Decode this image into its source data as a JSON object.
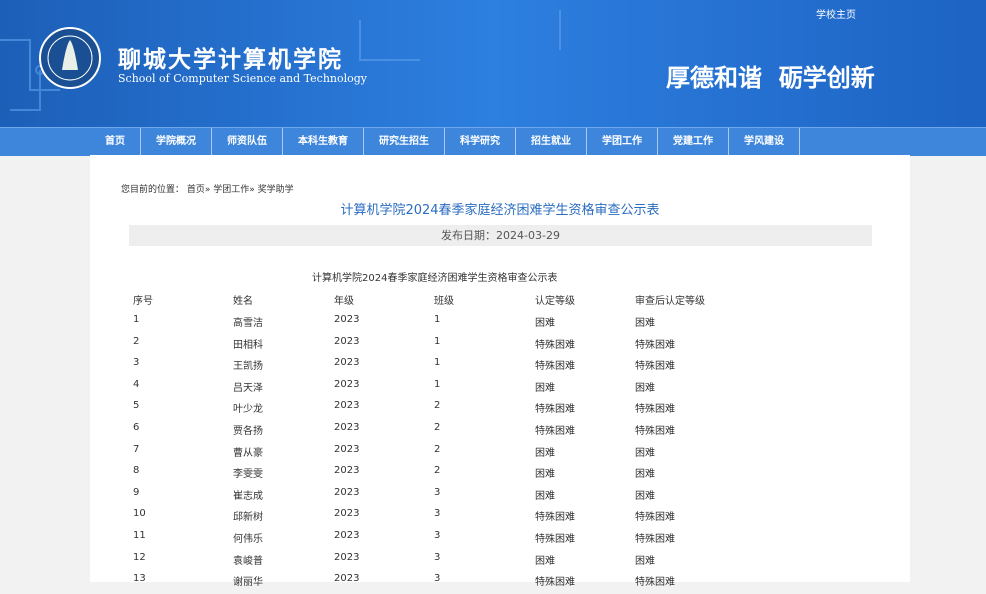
{
  "header": {
    "top_link": "学校主页",
    "school_name": "聊城大学计算机学院",
    "school_name_en": "School of Computer Science and Technology",
    "slogan": "厚德和谐  砺学创新"
  },
  "nav": [
    "首页",
    "学院概况",
    "师资队伍",
    "本科生教育",
    "研究生招生",
    "科学研究",
    "招生就业",
    "学团工作",
    "党建工作",
    "学风建设"
  ],
  "breadcrumb": {
    "label": "您目前的位置：",
    "path": "首页» 学团工作» 奖学助学"
  },
  "article": {
    "title": "计算机学院2024春季家庭经济困难学生资格审查公示表",
    "date": "发布日期：2024-03-29"
  },
  "table": {
    "caption": "计算机学院2024春季家庭经济困难学生资格审查公示表",
    "headers": [
      "序号",
      "姓名",
      "年级",
      "班级",
      "认定等级",
      "审查后认定等级"
    ],
    "rows": [
      [
        "1",
        "高雪洁",
        "2023",
        "1",
        "困难",
        "困难"
      ],
      [
        "2",
        "田相科",
        "2023",
        "1",
        "特殊困难",
        "特殊困难"
      ],
      [
        "3",
        "王凯扬",
        "2023",
        "1",
        "特殊困难",
        "特殊困难"
      ],
      [
        "4",
        "吕天泽",
        "2023",
        "1",
        "困难",
        "困难"
      ],
      [
        "5",
        "叶少龙",
        "2023",
        "2",
        "特殊困难",
        "特殊困难"
      ],
      [
        "6",
        "贾各扬",
        "2023",
        "2",
        "特殊困难",
        "特殊困难"
      ],
      [
        "7",
        "曹从豪",
        "2023",
        "2",
        "困难",
        "困难"
      ],
      [
        "8",
        "李雯雯",
        "2023",
        "2",
        "困难",
        "困难"
      ],
      [
        "9",
        "崔志成",
        "2023",
        "3",
        "困难",
        "困难"
      ],
      [
        "10",
        "邱新树",
        "2023",
        "3",
        "特殊困难",
        "特殊困难"
      ],
      [
        "11",
        "何伟乐",
        "2023",
        "3",
        "特殊困难",
        "特殊困难"
      ],
      [
        "12",
        "袁峻普",
        "2023",
        "3",
        "困难",
        "困难"
      ],
      [
        "13",
        "谢丽华",
        "2023",
        "3",
        "特殊困难",
        "特殊困难"
      ]
    ]
  }
}
